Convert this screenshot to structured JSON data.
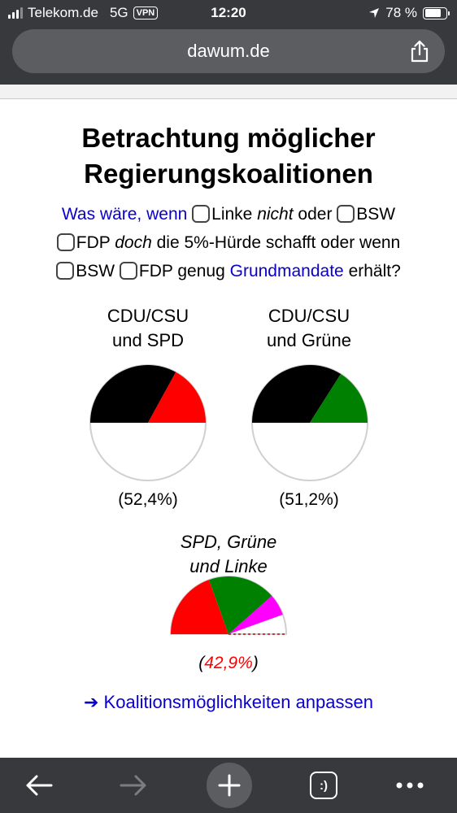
{
  "status_bar": {
    "carrier": "Telekom.de",
    "network": "5G",
    "vpn": "VPN",
    "time": "12:20",
    "battery_text": "78 %",
    "battery_level": 0.78
  },
  "browser": {
    "url": "dawum.de",
    "share_icon": "share-icon",
    "nav_icons": [
      "back-arrow-icon",
      "forward-arrow-icon",
      "new-tab-plus-icon",
      "tabs-icon",
      "more-icon"
    ],
    "tabs_label": ":)"
  },
  "page": {
    "title_line1": "Betrachtung möglicher",
    "title_line2": "Regierungskoalitionen",
    "intro": {
      "prefix": "Was wäre, wenn",
      "opt1_name": "Linke",
      "opt1_modifier": "nicht",
      "word_oder": "oder",
      "opt2_name": "BSW",
      "opt3_name": "FDP",
      "opt3_modifier": "doch",
      "hurdle_text": "die 5%-Hürde schafft oder wenn",
      "opt4_name": "BSW",
      "opt5_name": "FDP",
      "word_genug": "genug",
      "grundmandate_link": "Grundmandate",
      "suffix": "erhält?"
    },
    "adjust_link": "➔ Koalitionsmöglichkeiten anpassen"
  },
  "colors": {
    "cdu_csu": "#000000",
    "spd": "#ff0000",
    "gruene": "#008000",
    "linke": "#ff00ff",
    "link_blue": "#0a00cc",
    "chrome_dark": "#38393c"
  },
  "chart_data": [
    {
      "type": "pie",
      "title_line1": "CDU/CSU",
      "title_line2": "und SPD",
      "result_label": "(52,4%)",
      "share": 52.4,
      "majority": true,
      "segments": [
        {
          "name": "CDU/CSU",
          "share_of_half": 0.66,
          "color": "#000000"
        },
        {
          "name": "SPD",
          "share_of_half": 0.34,
          "color": "#ff0000"
        }
      ]
    },
    {
      "type": "pie",
      "title_line1": "CDU/CSU",
      "title_line2": "und Grüne",
      "result_label": "(51,2%)",
      "share": 51.2,
      "majority": true,
      "segments": [
        {
          "name": "CDU/CSU",
          "share_of_half": 0.68,
          "color": "#000000"
        },
        {
          "name": "Grüne",
          "share_of_half": 0.32,
          "color": "#008000"
        }
      ]
    },
    {
      "type": "pie",
      "title_line1": "SPD, Grüne",
      "title_line2": "und Linke",
      "result_label": "42,9%",
      "share": 42.9,
      "majority": false,
      "segments": [
        {
          "name": "SPD",
          "share_of_half": 0.39,
          "color": "#ff0000"
        },
        {
          "name": "Grüne",
          "share_of_half": 0.38,
          "color": "#008000"
        },
        {
          "name": "Linke",
          "share_of_half": 0.12,
          "color": "#ff00ff"
        }
      ]
    }
  ]
}
